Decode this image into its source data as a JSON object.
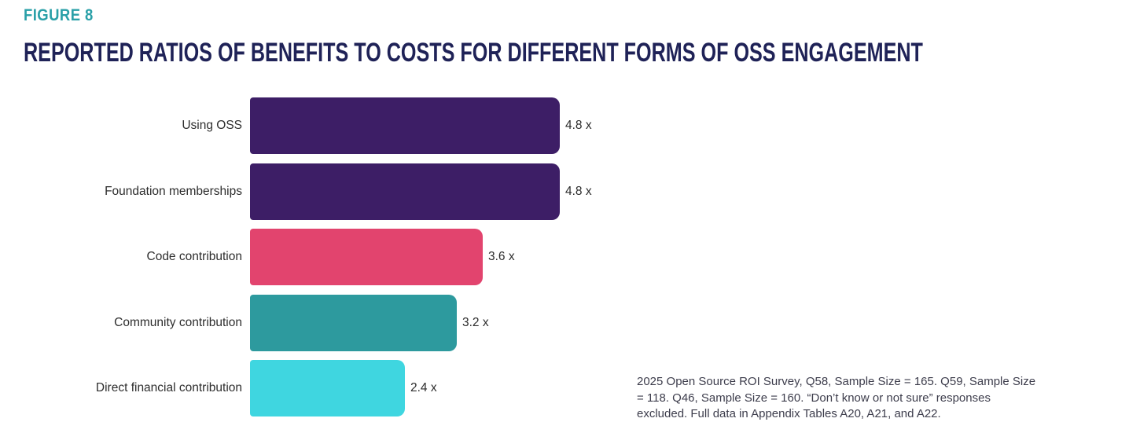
{
  "figure_label": "FIGURE 8",
  "title": "REPORTED RATIOS OF BENEFITS TO COSTS FOR DIFFERENT FORMS OF OSS ENGAGEMENT",
  "colors": {
    "figure_label_accent": "#2aa0a8",
    "title_navy": "#1f2257",
    "category_label_text": "#2d2d2d",
    "footnote_text": "#3d3d4c"
  },
  "chart_data": {
    "type": "bar",
    "orientation": "horizontal",
    "title": "REPORTED RATIOS OF BENEFITS TO COSTS FOR DIFFERENT FORMS OF OSS ENGAGEMENT",
    "categories": [
      "Using OSS",
      "Foundation memberships",
      "Code contribution",
      "Community contribution",
      "Direct financial contribution"
    ],
    "values": [
      4.8,
      4.8,
      3.6,
      3.2,
      2.4
    ],
    "value_labels": [
      "4.8 x",
      "4.8 x",
      "3.6 x",
      "3.2 x",
      "2.4 x"
    ],
    "bar_colors": [
      "#3d1e66",
      "#3d1e66",
      "#e2446e",
      "#2d9a9e",
      "#3fd6e0"
    ],
    "xlabel": "",
    "ylabel": "",
    "xlim": [
      0,
      4.8
    ],
    "grid": false,
    "legend": "none"
  },
  "footnote": "2025 Open Source ROI Survey, Q58, Sample Size = 165. Q59, Sample Size = 118. Q46, Sample Size = 160. “Don’t know or not sure” responses excluded. Full data in Appendix Tables A20, A21, and A22."
}
